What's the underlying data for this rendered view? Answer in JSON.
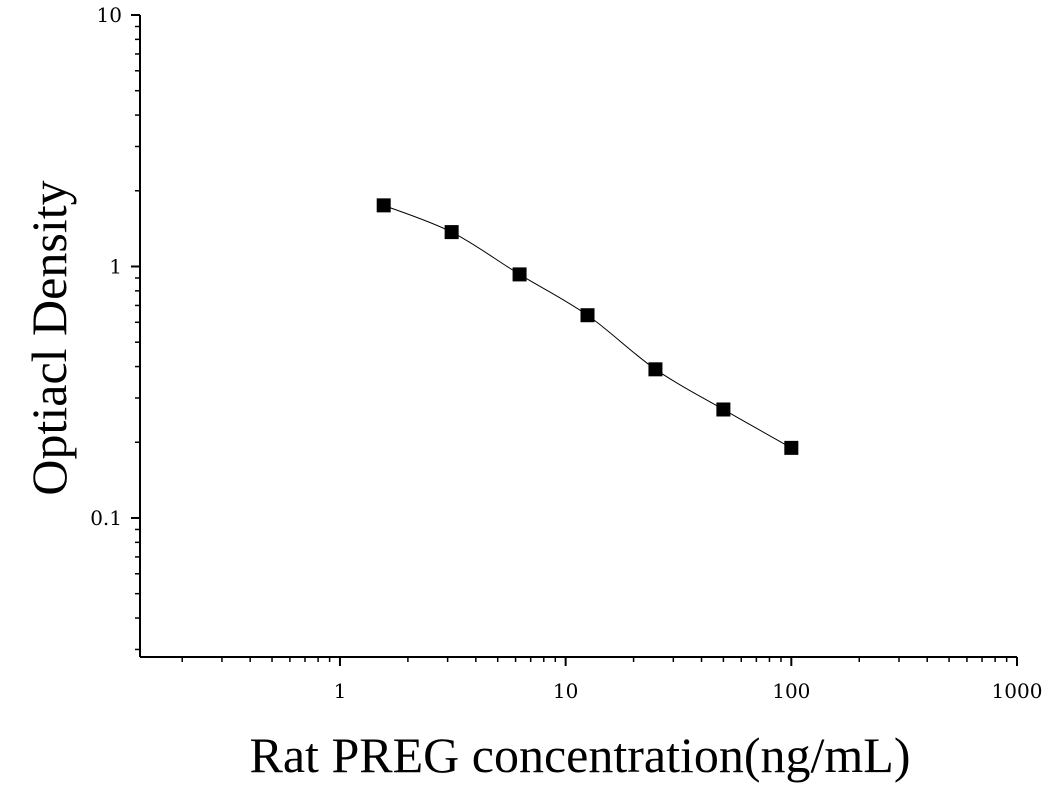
{
  "chart_data": {
    "type": "scatter",
    "title": "",
    "xlabel": "Rat PREG concentration(ng/mL)",
    "ylabel": "Optiacl Density",
    "x_scale": "log",
    "y_scale": "log",
    "xlim": [
      0.13,
      1000
    ],
    "ylim": [
      0.028,
      10
    ],
    "x_ticks": [
      {
        "value": 1,
        "label": "1"
      },
      {
        "value": 10,
        "label": "10"
      },
      {
        "value": 100,
        "label": "100"
      },
      {
        "value": 1000,
        "label": "1000"
      }
    ],
    "y_ticks": [
      {
        "value": 0.1,
        "label": "0.1"
      },
      {
        "value": 1,
        "label": "1"
      },
      {
        "value": 10,
        "label": "10"
      }
    ],
    "grid": false,
    "legend": "none",
    "marker": "square",
    "fit_curve": true,
    "color": "#000000",
    "series": [
      {
        "x": [
          1.5625,
          3.125,
          6.25,
          12.5,
          25,
          50,
          100
        ],
        "y": [
          1.75,
          1.37,
          0.93,
          0.64,
          0.39,
          0.27,
          0.19
        ]
      }
    ]
  }
}
